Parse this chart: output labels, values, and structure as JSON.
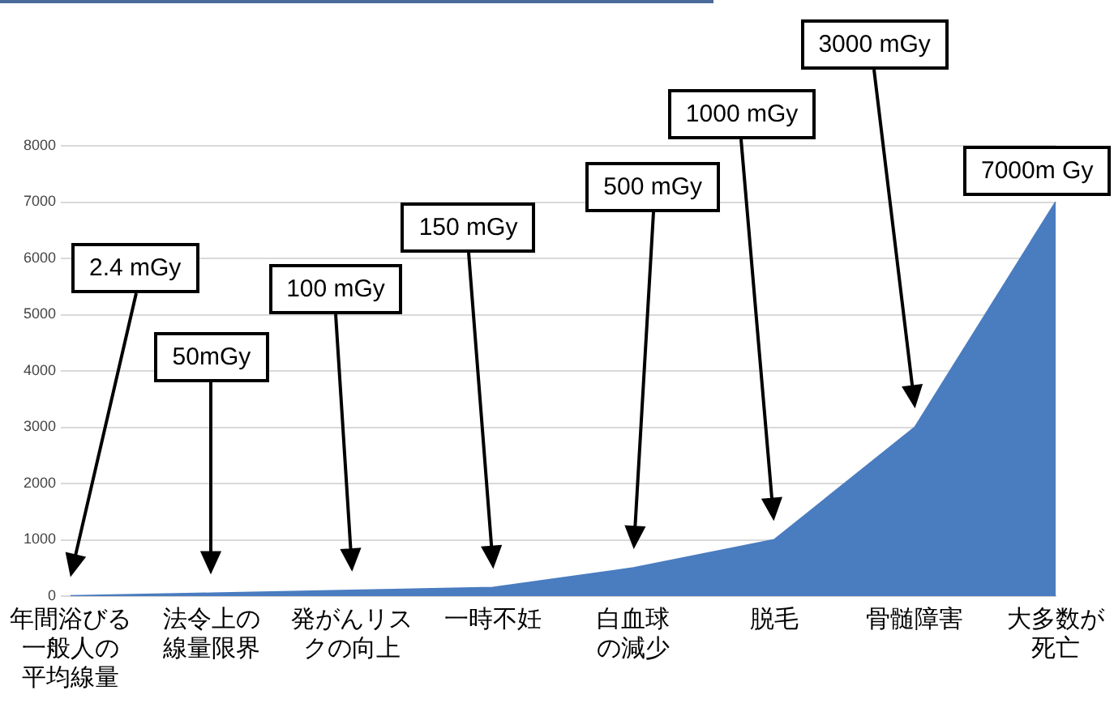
{
  "chart_data": {
    "type": "area",
    "categories": [
      "年間浴びる一般人の平均線量",
      "法令上の線量限界",
      "発がんリスクの向上",
      "一時不妊",
      "白血球の減少",
      "脱毛",
      "骨髄障害",
      "大多数が死亡"
    ],
    "values": [
      2.4,
      50,
      100,
      150,
      500,
      1000,
      3000,
      7000
    ],
    "color": "#4a7cc0",
    "ylim": [
      0,
      8000
    ],
    "yticks": [
      0,
      1000,
      2000,
      3000,
      4000,
      5000,
      6000,
      7000,
      8000
    ],
    "grid": "y",
    "annotations": [
      "2.4 mGy",
      "50mGy",
      "100 mGy",
      "150 mGy",
      "500 mGy",
      "1000 mGy",
      "3000 mGy",
      "7000m Gy"
    ]
  }
}
